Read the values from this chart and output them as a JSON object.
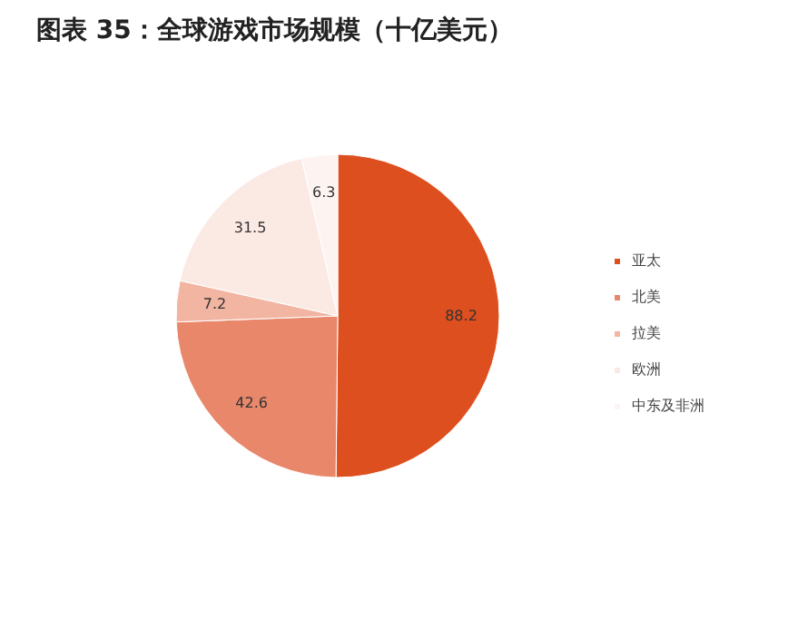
{
  "chart_data": {
    "type": "pie",
    "title": "图表 35：全球游戏市场规模（十亿美元）",
    "categories": [
      "亚太",
      "北美",
      "拉美",
      "欧洲",
      "中东及非洲"
    ],
    "values": [
      88.2,
      42.6,
      7.2,
      31.5,
      6.3
    ],
    "colors": [
      "#dd4f1e",
      "#e8876a",
      "#f1b5a2",
      "#fbe9e4",
      "#fdf4f2"
    ],
    "data_labels": true,
    "legend": "right"
  }
}
